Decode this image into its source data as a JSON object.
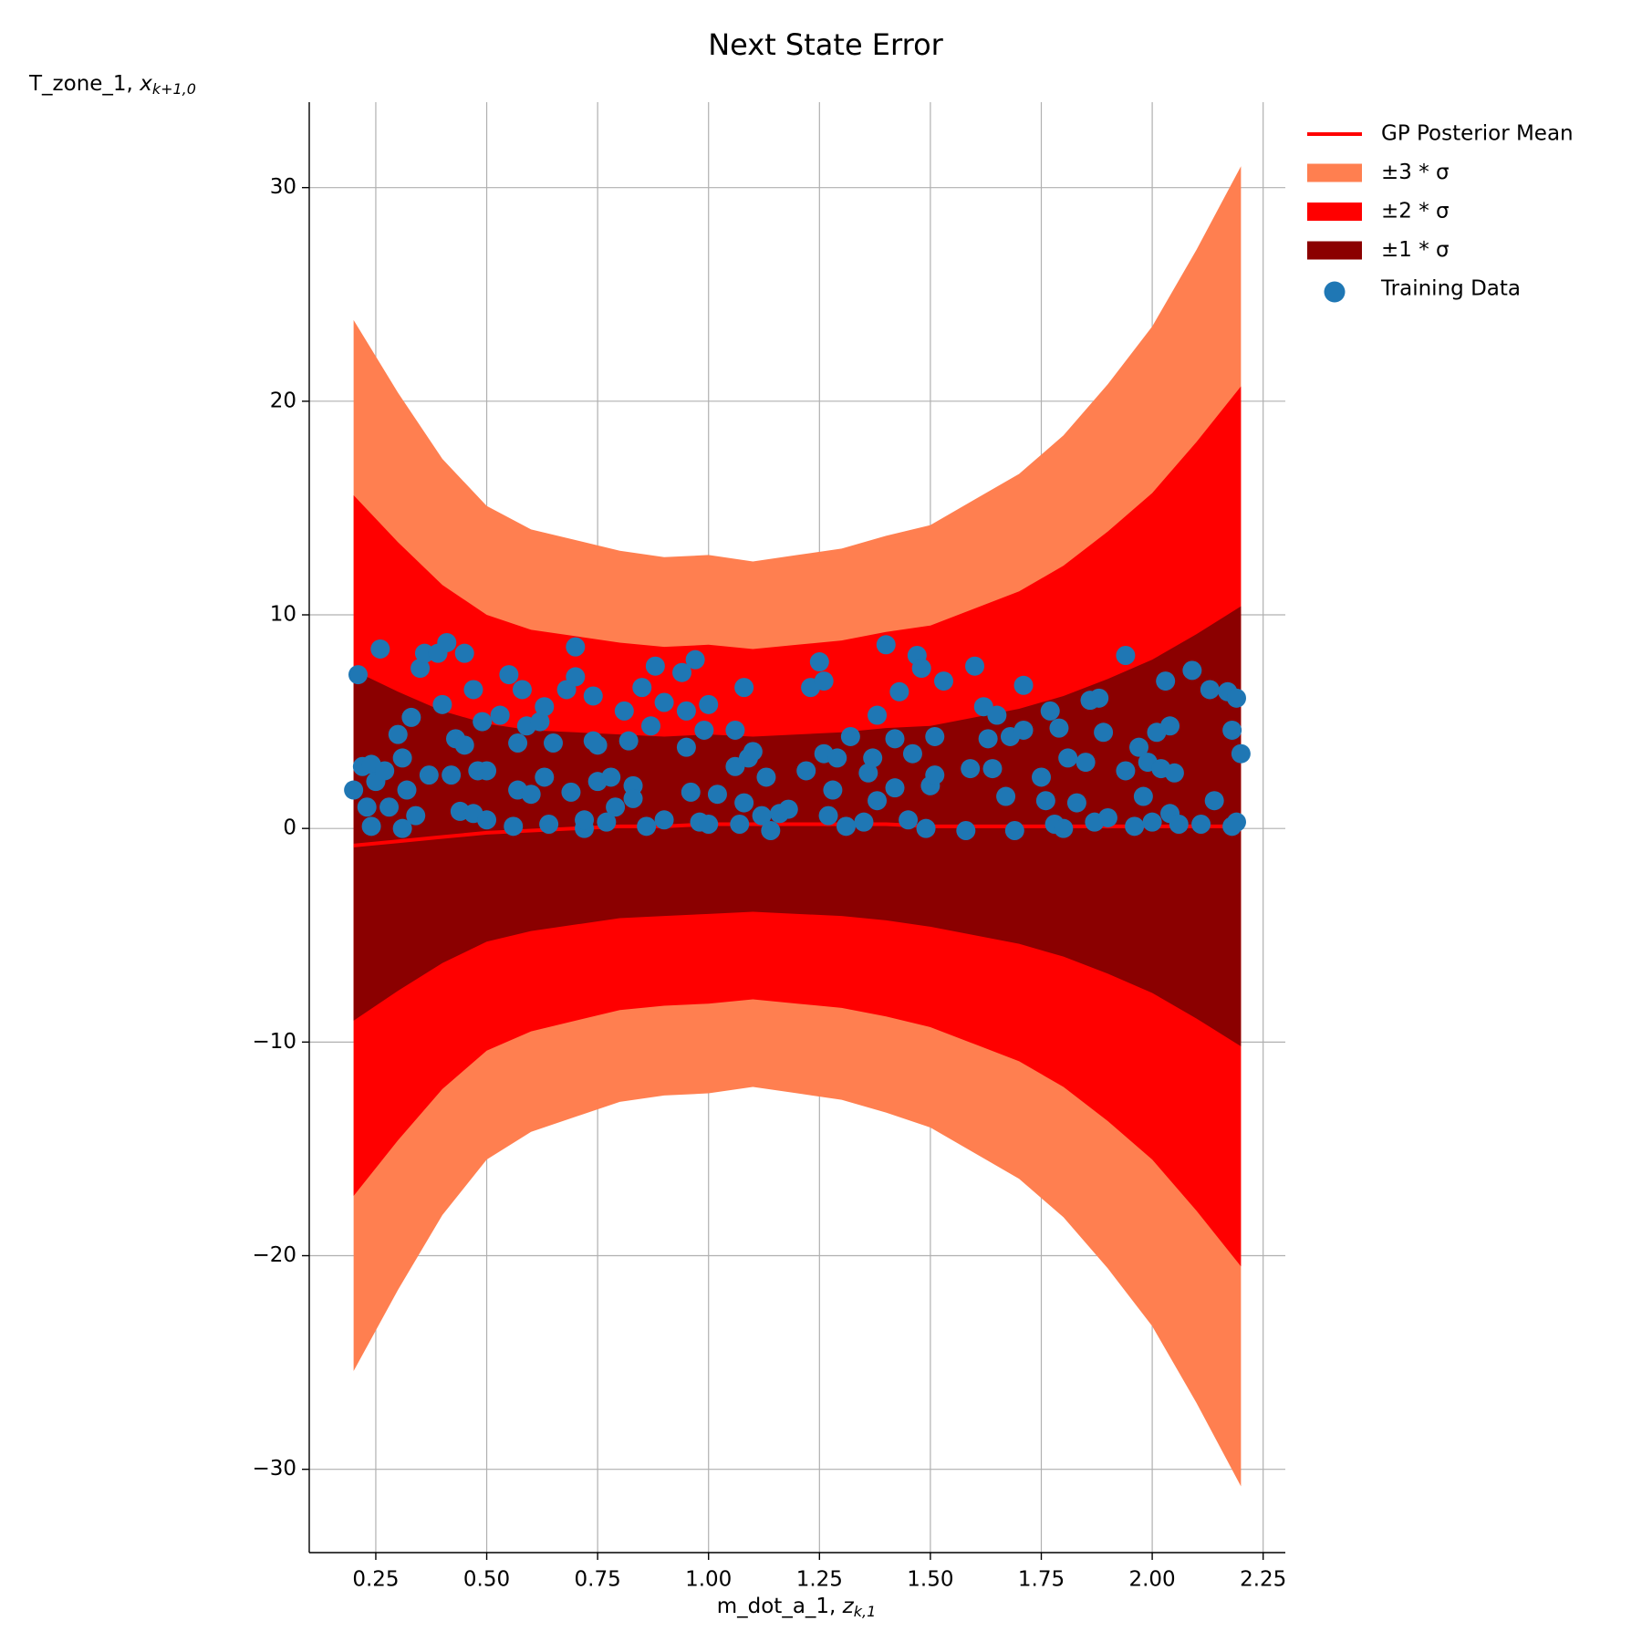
{
  "chart_data": {
    "type": "line",
    "title": "Next State Error",
    "xlabel": {
      "text": "m_dot_a_1, ",
      "math": "z",
      "sub": "k,1"
    },
    "ylabel": {
      "text": "T_zone_1, ",
      "math": "x",
      "sub": "k+1,0"
    },
    "xlim": [
      0.1,
      2.3
    ],
    "ylim": [
      -33.9,
      34.0
    ],
    "xticks": [
      0.25,
      {
        "value": 0.5,
        "label": "0.50"
      },
      0.75,
      {
        "value": 1.0,
        "label": "1.00"
      },
      1.25,
      {
        "value": 1.5,
        "label": "1.50"
      },
      1.75,
      {
        "value": 2.0,
        "label": "2.00"
      },
      2.25
    ],
    "yticks": [
      {
        "value": -30,
        "label": "−30"
      },
      {
        "value": -20,
        "label": "−20"
      },
      {
        "value": -10,
        "label": "−10"
      },
      0,
      10,
      20,
      30
    ],
    "grid": true,
    "legend": "outside right",
    "x": [
      0.2,
      0.3,
      0.4,
      0.5,
      0.6,
      0.7,
      0.8,
      0.9,
      1.0,
      1.1,
      1.2,
      1.3,
      1.4,
      1.5,
      1.6,
      1.7,
      1.8,
      1.9,
      2.0,
      2.1,
      2.2
    ],
    "series": [
      {
        "name": "GP Posterior Mean",
        "color": "#ff0000",
        "values": [
          -0.8,
          -0.6,
          -0.4,
          -0.2,
          -0.1,
          0,
          0.1,
          0.1,
          0.2,
          0.2,
          0.2,
          0.2,
          0.2,
          0.1,
          0.1,
          0.1,
          0.1,
          0.1,
          0.1,
          0.1,
          0.1
        ]
      }
    ],
    "bands": [
      {
        "name": "±3 * σ",
        "color": "#ff7f50",
        "upper": [
          23.8,
          20.4,
          17.3,
          15.1,
          14.0,
          13.5,
          13.0,
          12.7,
          12.8,
          12.5,
          12.8,
          13.1,
          13.7,
          14.2,
          15.4,
          16.6,
          18.4,
          20.8,
          23.5,
          27.1,
          31.0
        ],
        "lower": [
          -25.4,
          -21.6,
          -18.1,
          -15.5,
          -14.2,
          -13.5,
          -12.8,
          -12.5,
          -12.4,
          -12.1,
          -12.4,
          -12.7,
          -13.3,
          -14.0,
          -15.2,
          -16.4,
          -18.2,
          -20.6,
          -23.3,
          -26.9,
          -30.8
        ]
      },
      {
        "name": "±2 * σ",
        "color": "#ff0000",
        "upper": [
          15.6,
          13.4,
          11.4,
          10.0,
          9.3,
          9.0,
          8.7,
          8.5,
          8.6,
          8.4,
          8.6,
          8.8,
          9.2,
          9.5,
          10.3,
          11.1,
          12.3,
          13.9,
          15.7,
          18.1,
          20.7
        ],
        "lower": [
          -17.2,
          -14.6,
          -12.2,
          -10.4,
          -9.5,
          -9.0,
          -8.5,
          -8.3,
          -8.2,
          -8.0,
          -8.2,
          -8.4,
          -8.8,
          -9.3,
          -10.1,
          -10.9,
          -12.1,
          -13.7,
          -15.5,
          -17.9,
          -20.5
        ]
      },
      {
        "name": "±1 * σ",
        "color": "#8b0000",
        "upper": [
          7.4,
          6.4,
          5.5,
          4.9,
          4.6,
          4.5,
          4.4,
          4.3,
          4.4,
          4.3,
          4.4,
          4.5,
          4.7,
          4.8,
          5.2,
          5.6,
          6.2,
          7.0,
          7.9,
          9.1,
          10.4
        ],
        "lower": [
          -9.0,
          -7.6,
          -6.3,
          -5.3,
          -4.8,
          -4.5,
          -4.2,
          -4.1,
          -4.0,
          -3.9,
          -4.0,
          -4.1,
          -4.3,
          -4.6,
          -5.0,
          -5.4,
          -6.0,
          -6.8,
          -7.7,
          -8.9,
          -10.2
        ]
      }
    ],
    "scatter": {
      "name": "Training Data",
      "color": "#1f77b4",
      "x": [
        0.2,
        0.21,
        0.22,
        0.23,
        0.24,
        0.24,
        0.25,
        0.26,
        0.27,
        0.28,
        0.3,
        0.31,
        0.31,
        0.32,
        0.33,
        0.34,
        0.35,
        0.36,
        0.37,
        0.39,
        0.4,
        0.41,
        0.42,
        0.43,
        0.44,
        0.45,
        0.45,
        0.47,
        0.47,
        0.48,
        0.49,
        0.5,
        0.5,
        0.53,
        0.55,
        0.56,
        0.57,
        0.57,
        0.58,
        0.59,
        0.6,
        0.62,
        0.63,
        0.63,
        0.64,
        0.65,
        0.68,
        0.69,
        0.7,
        0.7,
        0.72,
        0.72,
        0.74,
        0.74,
        0.75,
        0.75,
        0.77,
        0.78,
        0.79,
        0.81,
        0.82,
        0.83,
        0.83,
        0.85,
        0.86,
        0.87,
        0.88,
        0.9,
        0.9,
        0.94,
        0.95,
        0.95,
        0.96,
        0.97,
        0.98,
        0.99,
        1.0,
        1.0,
        1.02,
        1.06,
        1.06,
        1.07,
        1.08,
        1.08,
        1.09,
        1.1,
        1.12,
        1.13,
        1.14,
        1.16,
        1.18,
        1.22,
        1.23,
        1.25,
        1.26,
        1.26,
        1.27,
        1.28,
        1.29,
        1.31,
        1.32,
        1.35,
        1.36,
        1.37,
        1.38,
        1.38,
        1.4,
        1.42,
        1.42,
        1.43,
        1.45,
        1.46,
        1.47,
        1.48,
        1.49,
        1.5,
        1.51,
        1.51,
        1.53,
        1.58,
        1.59,
        1.6,
        1.62,
        1.63,
        1.64,
        1.65,
        1.67,
        1.68,
        1.69,
        1.71,
        1.71,
        1.75,
        1.76,
        1.77,
        1.78,
        1.79,
        1.8,
        1.81,
        1.83,
        1.85,
        1.86,
        1.87,
        1.88,
        1.89,
        1.9,
        1.94,
        1.94,
        1.96,
        1.97,
        1.98,
        1.99,
        2.0,
        2.01,
        2.02,
        2.03,
        2.04,
        2.04,
        2.05,
        2.06,
        2.09,
        2.11,
        2.13,
        2.14,
        2.17,
        2.18,
        2.18,
        2.19,
        2.2,
        2.19
      ],
      "y": [
        1.8,
        7.2,
        2.9,
        1.0,
        3.0,
        0.1,
        2.2,
        8.4,
        2.7,
        1.0,
        4.4,
        0.0,
        3.3,
        1.8,
        5.2,
        0.6,
        7.5,
        8.2,
        2.5,
        8.2,
        5.8,
        8.7,
        2.5,
        4.2,
        0.8,
        3.9,
        8.2,
        6.5,
        0.7,
        2.7,
        5.0,
        0.4,
        2.7,
        5.3,
        7.2,
        0.1,
        4.0,
        1.8,
        6.5,
        4.8,
        1.6,
        5.0,
        2.4,
        5.7,
        0.2,
        4.0,
        6.5,
        1.7,
        8.5,
        7.1,
        0.0,
        0.4,
        4.1,
        6.2,
        3.9,
        2.2,
        0.3,
        2.4,
        1.0,
        5.5,
        4.1,
        2.0,
        1.4,
        6.6,
        0.1,
        4.8,
        7.6,
        5.9,
        0.4,
        7.3,
        5.5,
        3.8,
        1.7,
        7.9,
        0.3,
        4.6,
        5.8,
        0.2,
        1.6,
        4.6,
        2.9,
        0.2,
        6.6,
        1.2,
        3.3,
        3.6,
        0.6,
        2.4,
        -0.1,
        0.7,
        0.9,
        2.7,
        6.6,
        7.8,
        6.9,
        3.5,
        0.6,
        1.8,
        3.3,
        0.1,
        4.3,
        0.3,
        2.6,
        3.3,
        5.3,
        1.3,
        8.6,
        1.9,
        4.2,
        6.4,
        0.4,
        3.5,
        8.1,
        7.5,
        0.0,
        2.0,
        4.3,
        2.5,
        6.9,
        -0.1,
        2.8,
        7.6,
        5.7,
        4.2,
        2.8,
        5.3,
        1.5,
        4.3,
        -0.1,
        4.6,
        6.7,
        2.4,
        1.3,
        5.5,
        0.2,
        4.7,
        0.0,
        3.3,
        1.2,
        3.1,
        6.0,
        0.3,
        6.1,
        4.5,
        0.5,
        2.7,
        8.1,
        0.1,
        3.8,
        1.5,
        3.1,
        0.3,
        4.5,
        2.8,
        6.9,
        4.8,
        0.7,
        2.6,
        0.2,
        7.4,
        0.2,
        6.5,
        1.3,
        6.4,
        0.1,
        4.6,
        6.1,
        3.5,
        0.3
      ]
    }
  }
}
